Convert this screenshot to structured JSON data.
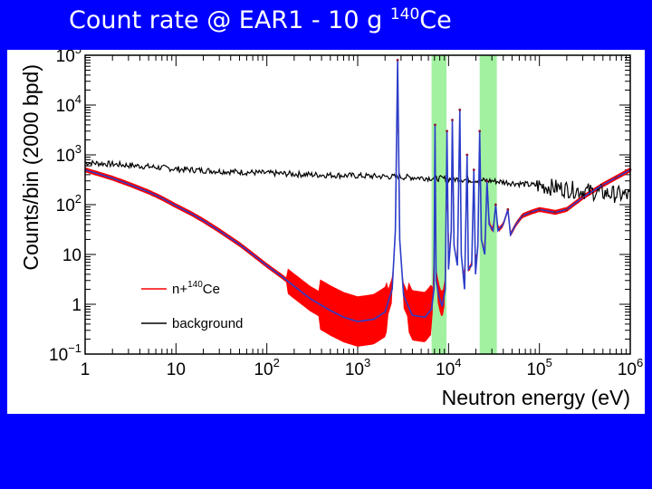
{
  "slide": {
    "title_main": "Count rate @ EAR1 - 10 g ",
    "title_isotope_mass": "140",
    "title_isotope": "Ce"
  },
  "colors": {
    "background": "#0000ff",
    "panel": "#ffffff",
    "signal_band": "#ff0000",
    "signal_mean": "#2b3cc8",
    "signal_marker": "#8b1a3a",
    "background_line": "#000000",
    "highlight": "#90ee90"
  },
  "chart_data": {
    "type": "line",
    "xlabel": "Neutron energy (eV)",
    "ylabel": "Counts/bin (2000 bpd)",
    "xscale": "log",
    "yscale": "log",
    "xlim": [
      1,
      1000000
    ],
    "ylim": [
      0.1,
      100000
    ],
    "x_ticks": [
      {
        "base": "1",
        "exp": ""
      },
      {
        "base": "10",
        "exp": ""
      },
      {
        "base": "10",
        "exp": "2"
      },
      {
        "base": "10",
        "exp": "3"
      },
      {
        "base": "10",
        "exp": "4"
      },
      {
        "base": "10",
        "exp": "5"
      },
      {
        "base": "10",
        "exp": "6"
      }
    ],
    "y_ticks": [
      {
        "base": "10",
        "exp": "−1"
      },
      {
        "base": "1",
        "exp": ""
      },
      {
        "base": "10",
        "exp": ""
      },
      {
        "base": "10",
        "exp": "2"
      },
      {
        "base": "10",
        "exp": "3"
      },
      {
        "base": "10",
        "exp": "4"
      },
      {
        "base": "10",
        "exp": "5"
      }
    ],
    "legend": {
      "position": "lower-left",
      "entries": [
        {
          "label_main": "n+",
          "label_mass": "140",
          "label_isotope": "Ce",
          "color": "#ff0000"
        },
        {
          "label_main": "background",
          "color": "#000000"
        }
      ]
    },
    "highlight_bands": [
      {
        "x": [
          6500,
          9500
        ]
      },
      {
        "x": [
          22000,
          34000
        ]
      }
    ],
    "series": [
      {
        "key": "signal",
        "color": "#2b3cc8",
        "points": [
          [
            1,
            500
          ],
          [
            1.5,
            400
          ],
          [
            2,
            340
          ],
          [
            3,
            260
          ],
          [
            5,
            180
          ],
          [
            7,
            135
          ],
          [
            10,
            95
          ],
          [
            15,
            65
          ],
          [
            20,
            48
          ],
          [
            30,
            30
          ],
          [
            50,
            16
          ],
          [
            70,
            10
          ],
          [
            100,
            6
          ],
          [
            150,
            3.5
          ],
          [
            200,
            2.3
          ],
          [
            300,
            1.3
          ],
          [
            500,
            0.75
          ],
          [
            700,
            0.55
          ],
          [
            1000,
            0.45
          ],
          [
            1500,
            0.5
          ],
          [
            2000,
            0.7
          ],
          [
            2400,
            2
          ],
          [
            2600,
            30
          ],
          [
            2750,
            80000
          ],
          [
            2900,
            20
          ],
          [
            3200,
            1.5
          ],
          [
            4000,
            0.6
          ],
          [
            5500,
            0.55
          ],
          [
            6500,
            0.8
          ],
          [
            6900,
            2
          ],
          [
            7100,
            4000
          ],
          [
            7300,
            3
          ],
          [
            7800,
            1.5
          ],
          [
            8500,
            0.9
          ],
          [
            9200,
            2
          ],
          [
            9600,
            3000
          ],
          [
            10000,
            5
          ],
          [
            10700,
            30
          ],
          [
            11000,
            5000
          ],
          [
            11500,
            15
          ],
          [
            12500,
            6
          ],
          [
            13300,
            8000
          ],
          [
            13800,
            10
          ],
          [
            15000,
            2
          ],
          [
            16000,
            1000
          ],
          [
            16500,
            5
          ],
          [
            18000,
            6
          ],
          [
            19000,
            500
          ],
          [
            19800,
            4
          ],
          [
            21000,
            15
          ],
          [
            22000,
            3000
          ],
          [
            23000,
            20
          ],
          [
            25000,
            10
          ],
          [
            26500,
            300
          ],
          [
            28000,
            40
          ],
          [
            31000,
            30
          ],
          [
            33000,
            100
          ],
          [
            35000,
            30
          ],
          [
            40000,
            40
          ],
          [
            45000,
            80
          ],
          [
            48000,
            25
          ],
          [
            55000,
            40
          ],
          [
            65000,
            60
          ],
          [
            80000,
            70
          ],
          [
            100000,
            80
          ],
          [
            150000,
            70
          ],
          [
            200000,
            80
          ],
          [
            300000,
            140
          ],
          [
            500000,
            250
          ],
          [
            700000,
            350
          ],
          [
            1000000,
            500
          ]
        ]
      },
      {
        "key": "background",
        "color": "#000000",
        "points": [
          [
            1,
            700
          ],
          [
            2,
            650
          ],
          [
            5,
            580
          ],
          [
            10,
            520
          ],
          [
            30,
            470
          ],
          [
            100,
            430
          ],
          [
            300,
            400
          ],
          [
            1000,
            380
          ],
          [
            3000,
            360
          ],
          [
            10000,
            330
          ],
          [
            30000,
            300
          ],
          [
            100000,
            240
          ],
          [
            300000,
            190
          ],
          [
            1000000,
            150
          ]
        ]
      }
    ]
  }
}
